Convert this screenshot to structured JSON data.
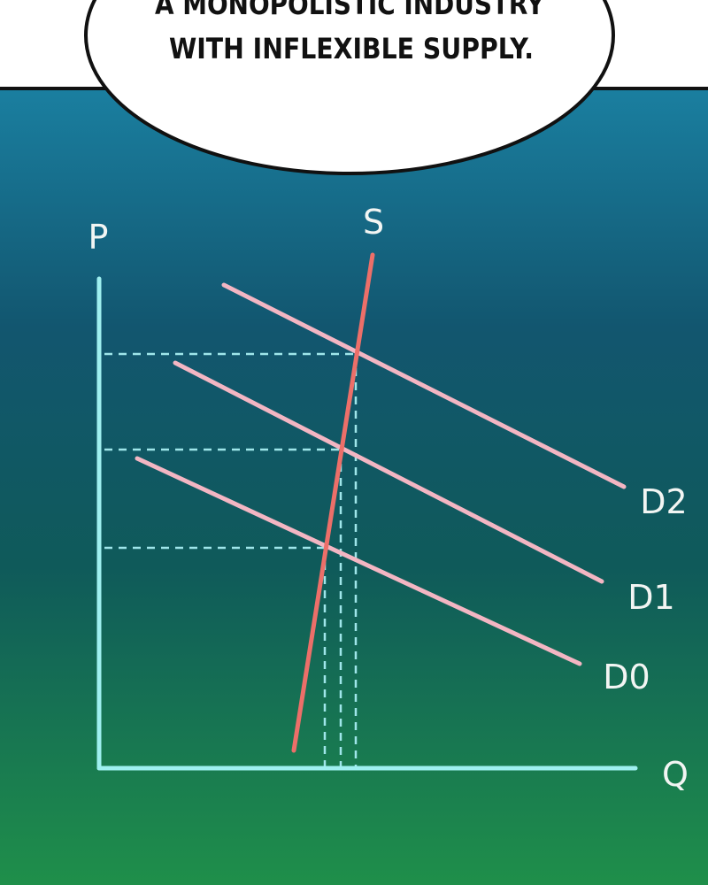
{
  "bubble": {
    "lines": [
      "A MONOPOLISTIC INDUSTRY",
      "WITH INFLEXIBLE SUPPLY."
    ]
  },
  "diagram": {
    "axes": {
      "y_label": "P",
      "x_label": "Q"
    },
    "curves": [
      {
        "label": "S"
      },
      {
        "label": "D2"
      },
      {
        "label": "D1"
      },
      {
        "label": "D0"
      }
    ]
  }
}
